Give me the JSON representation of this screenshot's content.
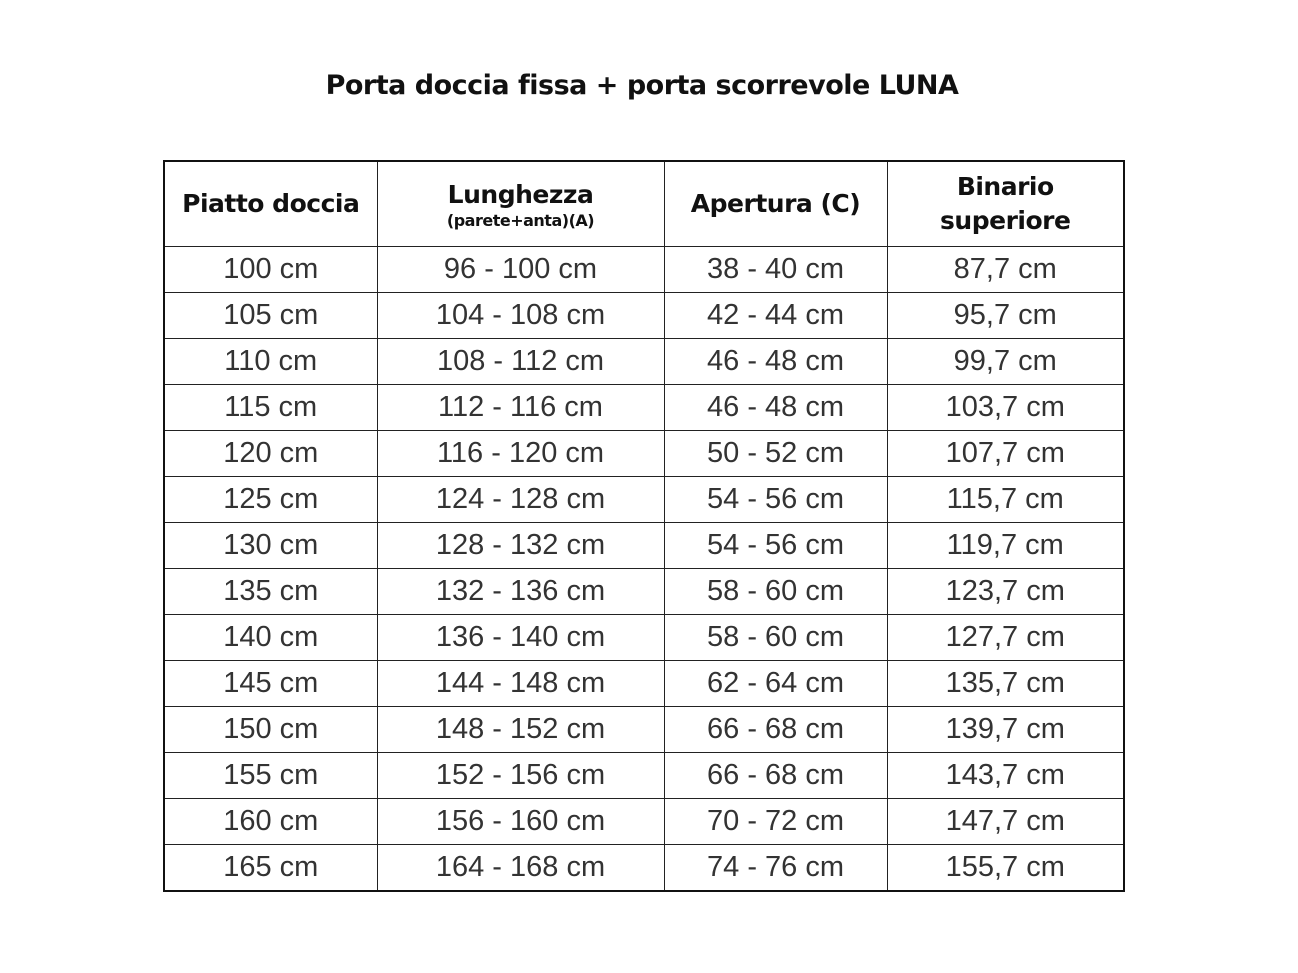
{
  "title": "Porta doccia fissa + porta scorrevole LUNA",
  "headers": {
    "piatto": "Piatto doccia",
    "lunghezza": "Lunghezza",
    "lunghezza_sub": "(parete+anta)(A)",
    "apertura": "Apertura (C)",
    "binario_1": "Binario",
    "binario_2": "superiore"
  },
  "rows": [
    [
      "100 cm",
      "96 - 100 cm",
      "38 - 40 cm",
      "87,7 cm"
    ],
    [
      "105 cm",
      "104 - 108 cm",
      "42 - 44 cm",
      "95,7 cm"
    ],
    [
      "110 cm",
      "108 - 112 cm",
      "46 - 48 cm",
      "99,7 cm"
    ],
    [
      "115 cm",
      "112 - 116 cm",
      "46 - 48 cm",
      "103,7 cm"
    ],
    [
      "120 cm",
      "116 - 120 cm",
      "50 - 52 cm",
      "107,7 cm"
    ],
    [
      "125 cm",
      "124 - 128 cm",
      "54 - 56 cm",
      "115,7 cm"
    ],
    [
      "130 cm",
      "128 - 132 cm",
      "54 - 56 cm",
      "119,7 cm"
    ],
    [
      "135 cm",
      "132 - 136 cm",
      "58 - 60 cm",
      "123,7 cm"
    ],
    [
      "140 cm",
      "136 - 140 cm",
      "58 - 60 cm",
      "127,7 cm"
    ],
    [
      "145 cm",
      "144 - 148 cm",
      "62 - 64 cm",
      "135,7 cm"
    ],
    [
      "150 cm",
      "148 - 152 cm",
      "66 - 68 cm",
      "139,7 cm"
    ],
    [
      "155 cm",
      "152 - 156 cm",
      "66 - 68 cm",
      "143,7 cm"
    ],
    [
      "160 cm",
      "156 - 160 cm",
      "70 - 72 cm",
      "147,7 cm"
    ],
    [
      "165 cm",
      "164 - 168 cm",
      "74 - 76 cm",
      "155,7 cm"
    ]
  ]
}
